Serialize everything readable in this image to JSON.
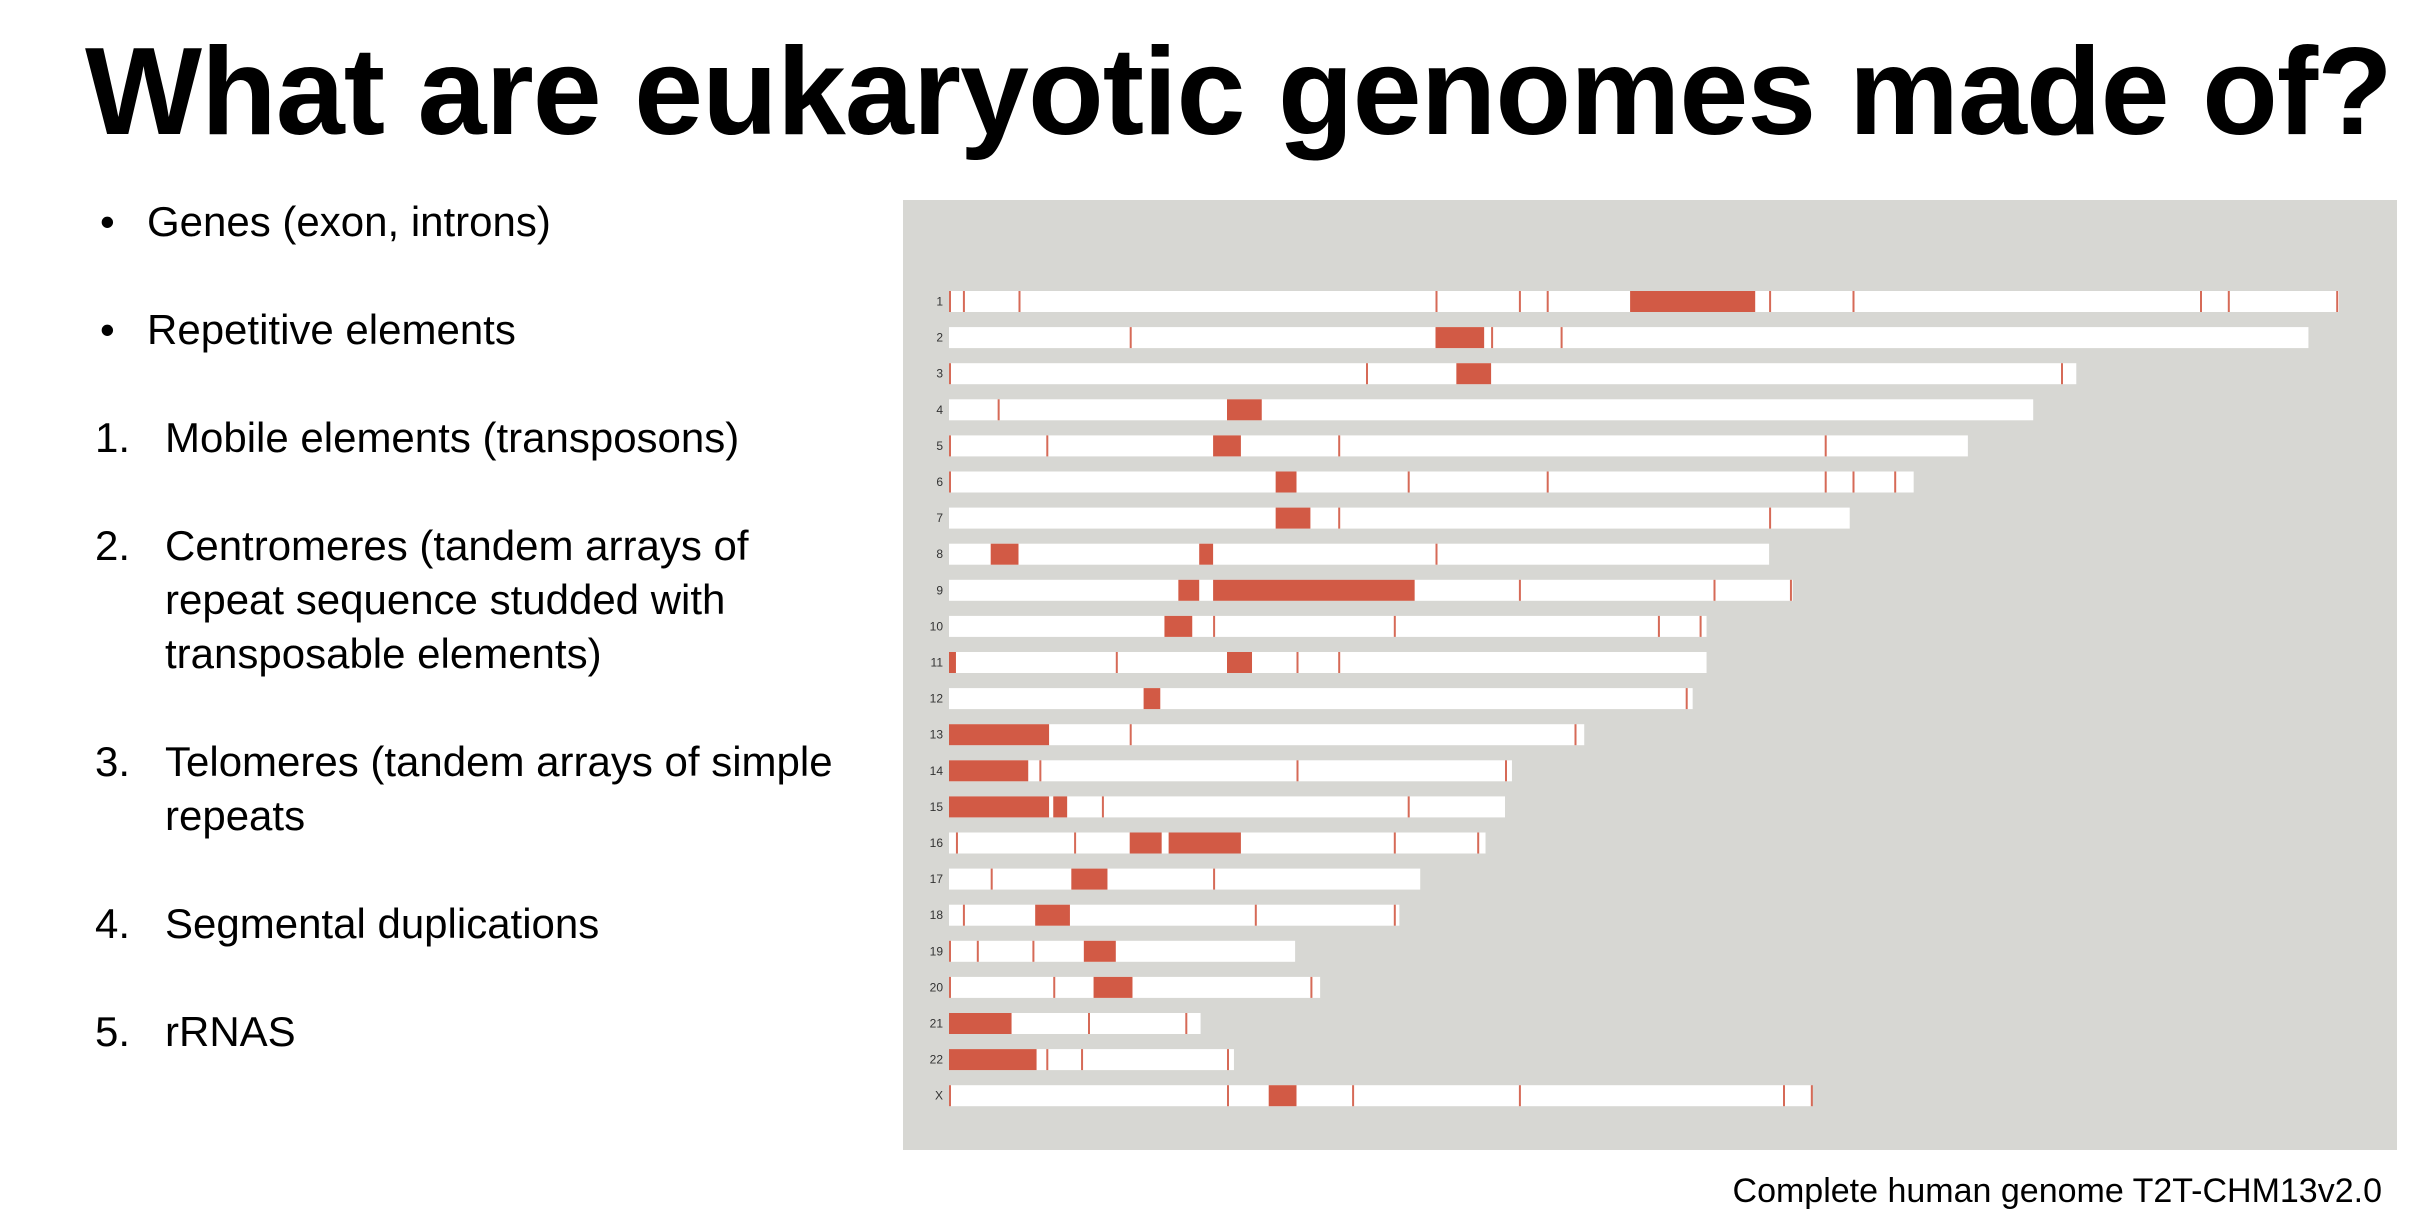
{
  "title": "What are eukaryotic genomes made of?",
  "bullets": [
    {
      "marker": "•",
      "text": "Genes (exon, introns)"
    },
    {
      "marker": "•",
      "text": "Repetitive elements"
    }
  ],
  "numbered": [
    {
      "marker": "1.",
      "text": "Mobile elements (transposons)"
    },
    {
      "marker": "2.",
      "text": "Centromeres (tandem arrays of\nrepeat sequence studded with\ntransposable elements)"
    },
    {
      "marker": "3.",
      "text": "Telomeres (tandem arrays of simple\nrepeats"
    },
    {
      "marker": "4.",
      "text": "Segmental duplications"
    },
    {
      "marker": "5.",
      "text": "rRNAS"
    }
  ],
  "caption": "Complete human genome T2T-CHM13v2.0",
  "colors": {
    "background": "#d7d7d3",
    "chromosome": "#ffffff",
    "repeat": "#d25a45"
  },
  "chart_data": {
    "type": "genome-ideogram",
    "units": "fraction of chromosome 1 length",
    "chromosomes": [
      {
        "label": "1",
        "length": 1.0,
        "blocks": [
          [
            0.49,
            0.58
          ]
        ],
        "marks": [
          0.0,
          0.01,
          0.05,
          0.35,
          0.41,
          0.43,
          0.59,
          0.65,
          0.9,
          0.92,
          0.998
        ]
      },
      {
        "label": "2",
        "length": 0.978,
        "blocks": [
          [
            0.35,
            0.385
          ]
        ],
        "marks": [
          0.13,
          0.39,
          0.44
        ]
      },
      {
        "label": "3",
        "length": 0.811,
        "blocks": [
          [
            0.365,
            0.39
          ]
        ],
        "marks": [
          0.0,
          0.3,
          0.8
        ]
      },
      {
        "label": "4",
        "length": 0.78,
        "blocks": [
          [
            0.2,
            0.225
          ]
        ],
        "marks": [
          0.035
        ]
      },
      {
        "label": "5",
        "length": 0.733,
        "blocks": [
          [
            0.19,
            0.21
          ]
        ],
        "marks": [
          0.0,
          0.07,
          0.28,
          0.63
        ]
      },
      {
        "label": "6",
        "length": 0.694,
        "blocks": [
          [
            0.235,
            0.25
          ]
        ],
        "marks": [
          0.0,
          0.33,
          0.43,
          0.63,
          0.65,
          0.68
        ]
      },
      {
        "label": "7",
        "length": 0.648,
        "blocks": [
          [
            0.235,
            0.26
          ]
        ],
        "marks": [
          0.28,
          0.59
        ]
      },
      {
        "label": "8",
        "length": 0.59,
        "blocks": [
          [
            0.03,
            0.05
          ],
          [
            0.18,
            0.19
          ]
        ],
        "marks": [
          0.35
        ]
      },
      {
        "label": "9",
        "length": 0.607,
        "blocks": [
          [
            0.165,
            0.18
          ],
          [
            0.19,
            0.335
          ]
        ],
        "marks": [
          0.41,
          0.55,
          0.605
        ]
      },
      {
        "label": "10",
        "length": 0.545,
        "blocks": [
          [
            0.155,
            0.175
          ]
        ],
        "marks": [
          0.19,
          0.32,
          0.51,
          0.54
        ]
      },
      {
        "label": "11",
        "length": 0.545,
        "blocks": [
          [
            0.0,
            0.005
          ],
          [
            0.2,
            0.218
          ]
        ],
        "marks": [
          0.12,
          0.25,
          0.28
        ]
      },
      {
        "label": "12",
        "length": 0.535,
        "blocks": [
          [
            0.14,
            0.152
          ]
        ],
        "marks": [
          0.53
        ]
      },
      {
        "label": "13",
        "length": 0.457,
        "blocks": [
          [
            0.0,
            0.072
          ]
        ],
        "marks": [
          0.13,
          0.45
        ]
      },
      {
        "label": "14",
        "length": 0.405,
        "blocks": [
          [
            0.0,
            0.057
          ]
        ],
        "marks": [
          0.065,
          0.25,
          0.4
        ]
      },
      {
        "label": "15",
        "length": 0.4,
        "blocks": [
          [
            0.0,
            0.072
          ],
          [
            0.075,
            0.085
          ]
        ],
        "marks": [
          0.11,
          0.33
        ]
      },
      {
        "label": "16",
        "length": 0.386,
        "blocks": [
          [
            0.13,
            0.153
          ],
          [
            0.158,
            0.21
          ]
        ],
        "marks": [
          0.005,
          0.09,
          0.32,
          0.38
        ]
      },
      {
        "label": "17",
        "length": 0.339,
        "blocks": [
          [
            0.088,
            0.114
          ]
        ],
        "marks": [
          0.03,
          0.19
        ]
      },
      {
        "label": "18",
        "length": 0.324,
        "blocks": [
          [
            0.062,
            0.087
          ]
        ],
        "marks": [
          0.01,
          0.22,
          0.32
        ]
      },
      {
        "label": "19",
        "length": 0.249,
        "blocks": [
          [
            0.097,
            0.12
          ]
        ],
        "marks": [
          0.0,
          0.02,
          0.06
        ]
      },
      {
        "label": "20",
        "length": 0.267,
        "blocks": [
          [
            0.104,
            0.132
          ]
        ],
        "marks": [
          0.0,
          0.075,
          0.26
        ]
      },
      {
        "label": "21",
        "length": 0.181,
        "blocks": [
          [
            0.0,
            0.045
          ]
        ],
        "marks": [
          0.1,
          0.17
        ]
      },
      {
        "label": "22",
        "length": 0.205,
        "blocks": [
          [
            0.0,
            0.063
          ]
        ],
        "marks": [
          0.07,
          0.095,
          0.2
        ]
      },
      {
        "label": "X",
        "length": 0.621,
        "blocks": [
          [
            0.23,
            0.25
          ]
        ],
        "marks": [
          0.0,
          0.2,
          0.29,
          0.41,
          0.6,
          0.62
        ]
      }
    ]
  }
}
